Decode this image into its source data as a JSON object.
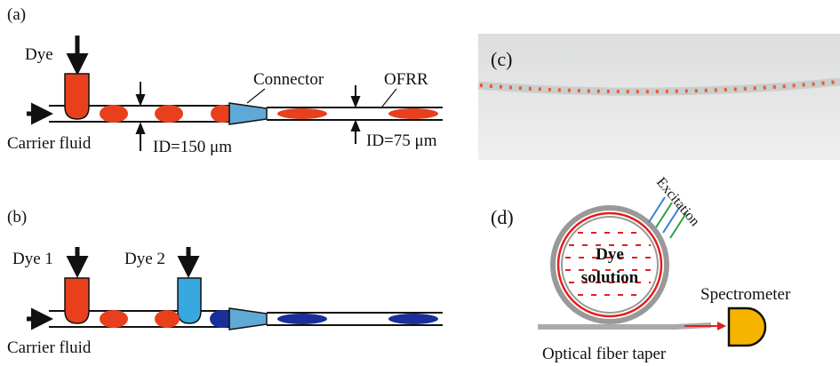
{
  "panels": {
    "a": {
      "label": "(a)",
      "dye": "Dye",
      "connector": "Connector",
      "ofrr": "OFRR",
      "carrier": "Carrier fluid",
      "inner_diameter_left": "ID=150 μm",
      "inner_diameter_right": "ID=75 μm"
    },
    "b": {
      "label": "(b)",
      "dye_1": "Dye 1",
      "dye_2": "Dye 2",
      "carrier": "Carrier fluid"
    },
    "c": {
      "label": "(c)"
    },
    "d": {
      "label": "(d)",
      "excitation": "Excitation",
      "dye_solution": [
        "Dye",
        "solution"
      ],
      "spectrometer": "Spectrometer",
      "taper": "Optical fiber taper"
    }
  }
}
